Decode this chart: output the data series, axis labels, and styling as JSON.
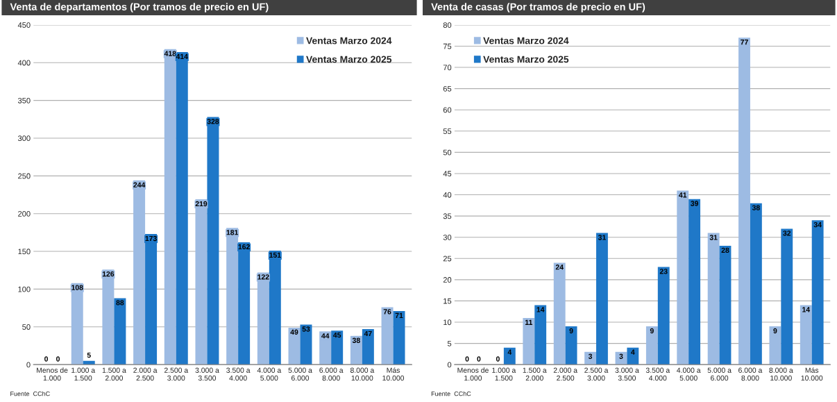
{
  "chart_data": [
    {
      "type": "bar",
      "title": "Venta de departamentos (Por tramos de precio en UF)",
      "categories": [
        "Menos de\n1.000",
        "1.000 a\n1.500",
        "1.500 a\n2.000",
        "2.000 a\n2.500",
        "2.500 a\n3.000",
        "3.000 a\n3.500",
        "3.500 a\n4.000",
        "4.000 a\n5.000",
        "5.000 a\n6.000",
        "6.000 a\n8.000",
        "8.000 a\n10.000",
        "Más\n10.000"
      ],
      "series": [
        {
          "name": "Ventas Marzo 2024",
          "color": "#9dbbe3",
          "values": [
            0,
            108,
            126,
            244,
            418,
            219,
            181,
            122,
            49,
            44,
            38,
            76
          ]
        },
        {
          "name": "Ventas Marzo 2025",
          "color": "#1f78c8",
          "values": [
            0,
            5,
            88,
            173,
            414,
            328,
            162,
            151,
            53,
            45,
            47,
            71
          ]
        }
      ],
      "ylim": [
        0,
        450
      ],
      "yticks": [
        0,
        50,
        100,
        150,
        200,
        250,
        300,
        350,
        400,
        450
      ],
      "grid": "y",
      "legend": "top right",
      "data_labels": true,
      "annotations": [
        "Fuente  CChC"
      ]
    },
    {
      "type": "bar",
      "title": "Venta de casas (Por tramos de precio en UF)",
      "categories": [
        "Menos de\n1.000",
        "1.000 a\n1.500",
        "1.500 a\n2.000",
        "2.000 a\n2.500",
        "2.500 a\n3.000",
        "3.000 a\n3.500",
        "3.500 a\n4.000",
        "4.000 a\n5.000",
        "5.000 a\n6.000",
        "6.000 a\n8.000",
        "8.000 a\n10.000",
        "Más\n10.000"
      ],
      "series": [
        {
          "name": "Ventas Marzo 2024",
          "color": "#9dbbe3",
          "values": [
            0,
            0,
            11,
            24,
            3,
            3,
            9,
            41,
            31,
            77,
            9,
            14
          ]
        },
        {
          "name": "Ventas Marzo 2025",
          "color": "#1f78c8",
          "values": [
            0,
            4,
            14,
            9,
            31,
            4,
            23,
            39,
            28,
            38,
            32,
            34
          ]
        }
      ],
      "ylim": [
        0,
        80
      ],
      "yticks": [
        0,
        5,
        10,
        15,
        20,
        25,
        30,
        35,
        40,
        45,
        50,
        55,
        60,
        65,
        70,
        75,
        80
      ],
      "grid": "y",
      "legend": "top left",
      "data_labels": true,
      "annotations": [
        "Fuente  CChC"
      ]
    }
  ]
}
